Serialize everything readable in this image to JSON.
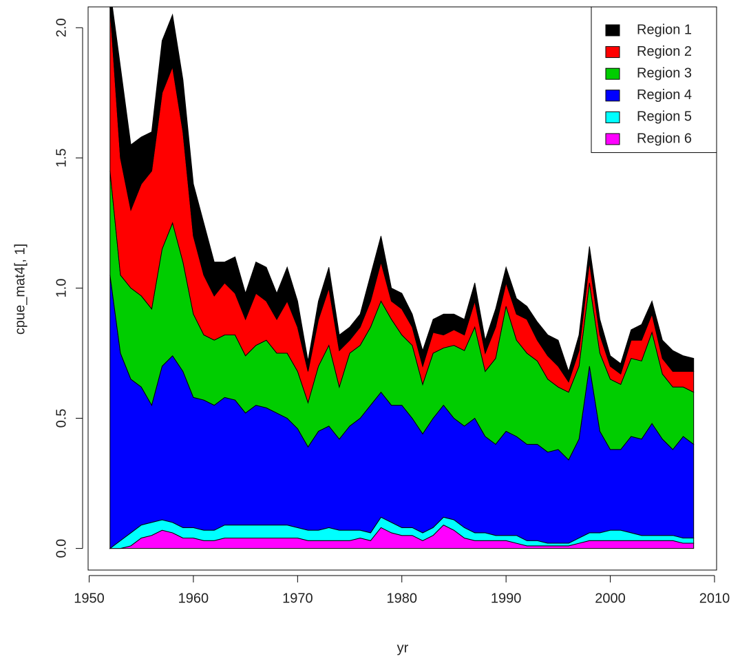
{
  "chart_data": {
    "type": "stacked_area",
    "x_label": "yr",
    "y_label": "cpue_mat4[, 1]",
    "x": [
      1952,
      1953,
      1954,
      1955,
      1956,
      1957,
      1958,
      1959,
      1960,
      1961,
      1962,
      1963,
      1964,
      1965,
      1966,
      1967,
      1968,
      1969,
      1970,
      1971,
      1972,
      1973,
      1974,
      1975,
      1976,
      1977,
      1978,
      1979,
      1980,
      1981,
      1982,
      1983,
      1984,
      1985,
      1986,
      1987,
      1988,
      1989,
      1990,
      1991,
      1992,
      1993,
      1994,
      1995,
      1996,
      1997,
      1998,
      1999,
      2000,
      2001,
      2002,
      2003,
      2004,
      2005,
      2006,
      2007,
      2008
    ],
    "series": [
      {
        "name": "Region 1",
        "color": "#000000",
        "values": [
          0.07,
          0.35,
          0.25,
          0.18,
          0.15,
          0.2,
          0.2,
          0.2,
          0.2,
          0.2,
          0.13,
          0.08,
          0.14,
          0.1,
          0.12,
          0.13,
          0.1,
          0.13,
          0.1,
          0.04,
          0.07,
          0.08,
          0.06,
          0.05,
          0.05,
          0.1,
          0.1,
          0.05,
          0.06,
          0.05,
          0.06,
          0.05,
          0.08,
          0.06,
          0.06,
          0.07,
          0.05,
          0.07,
          0.06,
          0.06,
          0.05,
          0.07,
          0.08,
          0.1,
          0.04,
          0.06,
          0.06,
          0.06,
          0.04,
          0.04,
          0.04,
          0.06,
          0.05,
          0.07,
          0.08,
          0.06,
          0.05
        ]
      },
      {
        "name": "Region 2",
        "color": "#ff0000",
        "values": [
          0.63,
          0.45,
          0.3,
          0.43,
          0.53,
          0.6,
          0.6,
          0.5,
          0.3,
          0.23,
          0.17,
          0.2,
          0.16,
          0.14,
          0.2,
          0.15,
          0.13,
          0.2,
          0.17,
          0.12,
          0.18,
          0.22,
          0.14,
          0.05,
          0.07,
          0.1,
          0.15,
          0.07,
          0.1,
          0.07,
          0.07,
          0.08,
          0.05,
          0.06,
          0.06,
          0.1,
          0.07,
          0.12,
          0.09,
          0.1,
          0.13,
          0.08,
          0.09,
          0.08,
          0.04,
          0.06,
          0.08,
          0.07,
          0.05,
          0.04,
          0.07,
          0.08,
          0.07,
          0.06,
          0.06,
          0.06,
          0.08
        ]
      },
      {
        "name": "Region 3",
        "color": "#00cd00",
        "values": [
          0.4,
          0.3,
          0.35,
          0.35,
          0.37,
          0.45,
          0.51,
          0.42,
          0.32,
          0.25,
          0.25,
          0.24,
          0.25,
          0.22,
          0.23,
          0.26,
          0.23,
          0.25,
          0.22,
          0.17,
          0.25,
          0.31,
          0.2,
          0.28,
          0.28,
          0.3,
          0.35,
          0.33,
          0.27,
          0.28,
          0.19,
          0.25,
          0.22,
          0.28,
          0.29,
          0.35,
          0.25,
          0.33,
          0.48,
          0.37,
          0.35,
          0.32,
          0.28,
          0.24,
          0.26,
          0.28,
          0.32,
          0.3,
          0.27,
          0.25,
          0.3,
          0.3,
          0.35,
          0.25,
          0.24,
          0.19,
          0.2
        ]
      },
      {
        "name": "Region 4",
        "color": "#0000ff",
        "values": [
          1.05,
          0.72,
          0.59,
          0.53,
          0.45,
          0.59,
          0.64,
          0.6,
          0.5,
          0.5,
          0.48,
          0.49,
          0.48,
          0.43,
          0.46,
          0.45,
          0.43,
          0.41,
          0.38,
          0.32,
          0.38,
          0.39,
          0.35,
          0.4,
          0.43,
          0.49,
          0.48,
          0.45,
          0.47,
          0.42,
          0.38,
          0.42,
          0.43,
          0.39,
          0.39,
          0.44,
          0.37,
          0.35,
          0.4,
          0.38,
          0.37,
          0.37,
          0.35,
          0.36,
          0.32,
          0.38,
          0.64,
          0.39,
          0.31,
          0.31,
          0.37,
          0.37,
          0.43,
          0.37,
          0.33,
          0.39,
          0.36
        ]
      },
      {
        "name": "Region 5",
        "color": "#00ffff",
        "values": [
          0,
          0.03,
          0.05,
          0.05,
          0.05,
          0.04,
          0.04,
          0.04,
          0.04,
          0.04,
          0.04,
          0.05,
          0.05,
          0.05,
          0.05,
          0.05,
          0.05,
          0.05,
          0.04,
          0.04,
          0.04,
          0.05,
          0.04,
          0.04,
          0.03,
          0.03,
          0.04,
          0.04,
          0.03,
          0.03,
          0.03,
          0.03,
          0.03,
          0.04,
          0.04,
          0.03,
          0.03,
          0.02,
          0.02,
          0.03,
          0.02,
          0.02,
          0.01,
          0.01,
          0.01,
          0.02,
          0.03,
          0.03,
          0.04,
          0.04,
          0.03,
          0.02,
          0.02,
          0.02,
          0.02,
          0.02,
          0.02
        ]
      },
      {
        "name": "Region 6",
        "color": "#ff00ff",
        "values": [
          0,
          0,
          0.01,
          0.04,
          0.05,
          0.07,
          0.06,
          0.04,
          0.04,
          0.03,
          0.03,
          0.04,
          0.04,
          0.04,
          0.04,
          0.04,
          0.04,
          0.04,
          0.04,
          0.03,
          0.03,
          0.03,
          0.03,
          0.03,
          0.04,
          0.03,
          0.08,
          0.06,
          0.05,
          0.05,
          0.03,
          0.05,
          0.09,
          0.07,
          0.04,
          0.03,
          0.03,
          0.03,
          0.03,
          0.02,
          0.01,
          0.01,
          0.01,
          0.01,
          0.01,
          0.02,
          0.03,
          0.03,
          0.03,
          0.03,
          0.03,
          0.03,
          0.03,
          0.03,
          0.03,
          0.02,
          0.02
        ]
      }
    ],
    "xlim": [
      1949.9,
      2010.2
    ],
    "ylim": [
      -0.083,
      2.08
    ],
    "xticks": [
      1950,
      1960,
      1970,
      1980,
      1990,
      2000,
      2010
    ],
    "yticks": [
      {
        "value": 0,
        "label": "0.0"
      },
      0.5,
      {
        "value": 1,
        "label": "1.0"
      },
      1.5,
      {
        "value": 2,
        "label": "2.0"
      }
    ],
    "legend": "top-right"
  }
}
